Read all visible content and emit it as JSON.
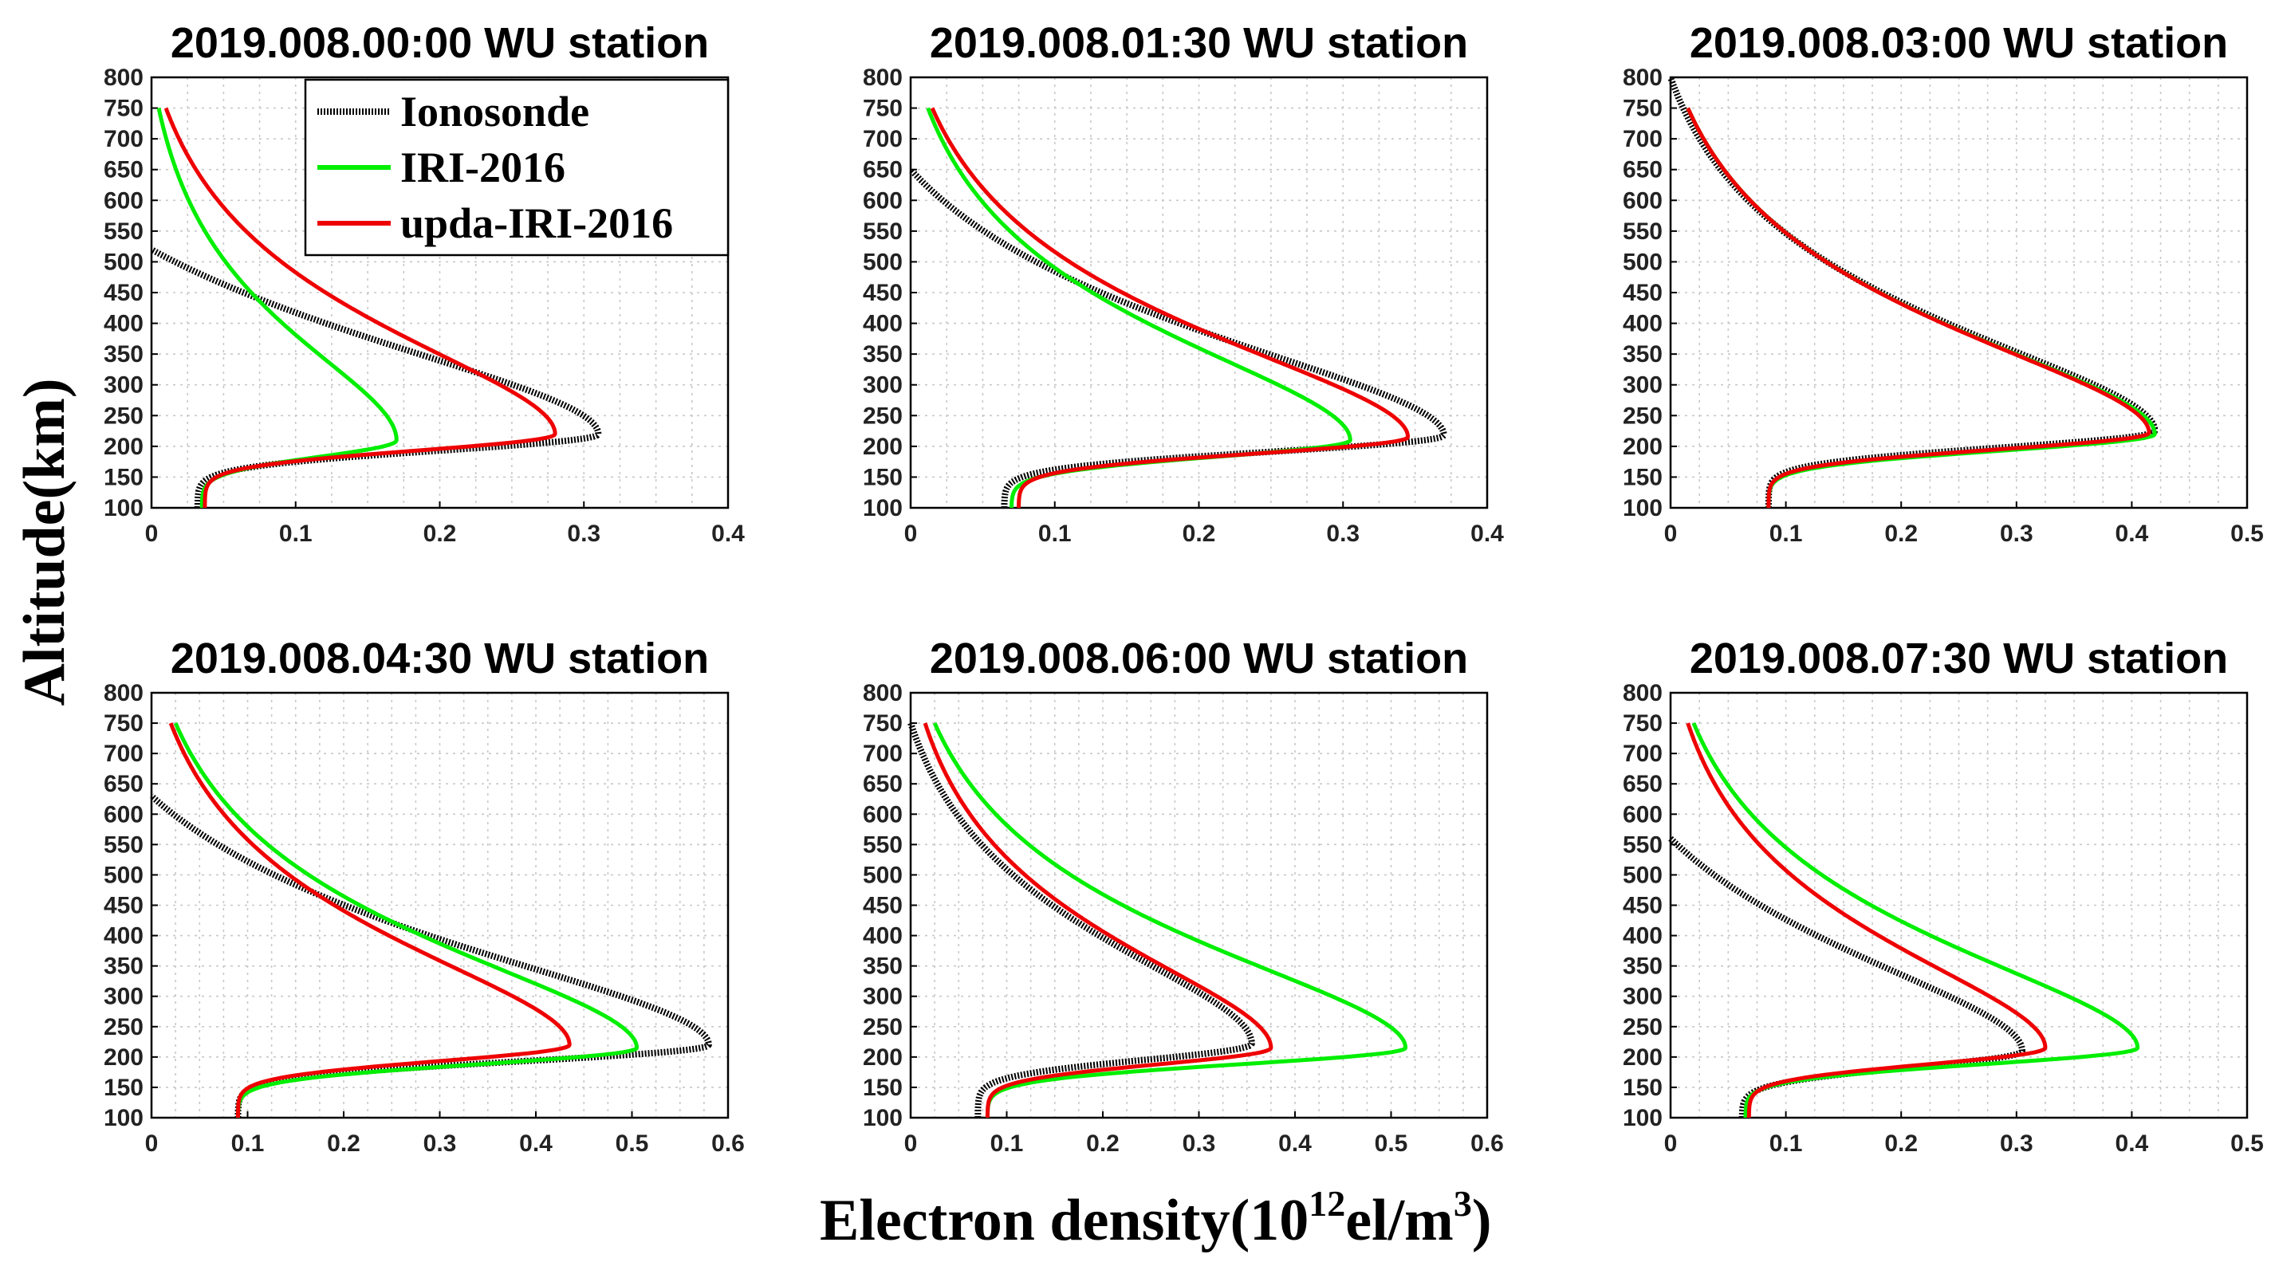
{
  "figure": {
    "ylabel": "Altitude(km)",
    "xlabel_main": "Electron density(10",
    "xlabel_exp": "12",
    "xlabel_unit": "el/m",
    "xlabel_unit_exp": "3",
    "xlabel_close": ")"
  },
  "legend": {
    "entries": [
      {
        "label": "Ionosonde",
        "color": "#000000",
        "style": "dotted"
      },
      {
        "label": "IRI-2016",
        "color": "#00ee00",
        "style": "solid"
      },
      {
        "label": "upda-IRI-2016",
        "color": "#ee0000",
        "style": "solid"
      }
    ]
  },
  "chart_data": [
    {
      "type": "line",
      "title": "2019.008.00:00 WU station",
      "xlim": [
        0,
        0.4
      ],
      "xticks": [
        0,
        0.1,
        0.2,
        0.3,
        0.4
      ],
      "ylim": [
        100,
        800
      ],
      "yticks": [
        100,
        150,
        200,
        250,
        300,
        350,
        400,
        450,
        500,
        550,
        600,
        650,
        700,
        750,
        800
      ],
      "profiles": [
        {
          "name": "Ionosonde",
          "peak_density": 0.31,
          "peak_altitude": 220,
          "bottom_density": 0.032,
          "top_altitude": 520,
          "top_density": 0.0
        },
        {
          "name": "IRI-2016",
          "peak_density": 0.17,
          "peak_altitude": 210,
          "bottom_density": 0.035,
          "top_altitude": 750,
          "top_density": 0.005
        },
        {
          "name": "upda-IRI-2016",
          "peak_density": 0.28,
          "peak_altitude": 220,
          "bottom_density": 0.037,
          "top_altitude": 750,
          "top_density": 0.01
        }
      ]
    },
    {
      "type": "line",
      "title": "2019.008.01:30 WU station",
      "xlim": [
        0,
        0.4
      ],
      "xticks": [
        0,
        0.1,
        0.2,
        0.3,
        0.4
      ],
      "ylim": [
        100,
        800
      ],
      "yticks": [
        100,
        150,
        200,
        250,
        300,
        350,
        400,
        450,
        500,
        550,
        600,
        650,
        700,
        750,
        800
      ],
      "profiles": [
        {
          "name": "Ionosonde",
          "peak_density": 0.37,
          "peak_altitude": 218,
          "bottom_density": 0.065,
          "top_altitude": 650,
          "top_density": 0.0
        },
        {
          "name": "IRI-2016",
          "peak_density": 0.305,
          "peak_altitude": 210,
          "bottom_density": 0.07,
          "top_altitude": 750,
          "top_density": 0.012
        },
        {
          "name": "upda-IRI-2016",
          "peak_density": 0.345,
          "peak_altitude": 215,
          "bottom_density": 0.075,
          "top_altitude": 750,
          "top_density": 0.015
        }
      ]
    },
    {
      "type": "line",
      "title": "2019.008.03:00 WU station",
      "xlim": [
        0,
        0.5
      ],
      "xticks": [
        0,
        0.1,
        0.2,
        0.3,
        0.4,
        0.5
      ],
      "ylim": [
        100,
        800
      ],
      "yticks": [
        100,
        150,
        200,
        250,
        300,
        350,
        400,
        450,
        500,
        550,
        600,
        650,
        700,
        750,
        800
      ],
      "profiles": [
        {
          "name": "Ionosonde",
          "peak_density": 0.42,
          "peak_altitude": 225,
          "bottom_density": 0.085,
          "top_altitude": 800,
          "top_density": 0.0
        },
        {
          "name": "IRI-2016",
          "peak_density": 0.42,
          "peak_altitude": 220,
          "bottom_density": 0.085,
          "top_altitude": 750,
          "top_density": 0.015
        },
        {
          "name": "upda-IRI-2016",
          "peak_density": 0.415,
          "peak_altitude": 222,
          "bottom_density": 0.085,
          "top_altitude": 750,
          "top_density": 0.015
        }
      ]
    },
    {
      "type": "line",
      "title": "2019.008.04:30 WU station",
      "xlim": [
        0,
        0.6
      ],
      "xticks": [
        0,
        0.1,
        0.2,
        0.3,
        0.4,
        0.5,
        0.6
      ],
      "ylim": [
        100,
        800
      ],
      "yticks": [
        100,
        150,
        200,
        250,
        300,
        350,
        400,
        450,
        500,
        550,
        600,
        650,
        700,
        750,
        800
      ],
      "profiles": [
        {
          "name": "Ionosonde",
          "peak_density": 0.58,
          "peak_altitude": 220,
          "bottom_density": 0.09,
          "top_altitude": 630,
          "top_density": 0.0
        },
        {
          "name": "IRI-2016",
          "peak_density": 0.505,
          "peak_altitude": 215,
          "bottom_density": 0.09,
          "top_altitude": 750,
          "top_density": 0.025
        },
        {
          "name": "upda-IRI-2016",
          "peak_density": 0.435,
          "peak_altitude": 220,
          "bottom_density": 0.09,
          "top_altitude": 750,
          "top_density": 0.02
        }
      ]
    },
    {
      "type": "line",
      "title": "2019.008.06:00 WU station",
      "xlim": [
        0,
        0.6
      ],
      "xticks": [
        0,
        0.1,
        0.2,
        0.3,
        0.4,
        0.5,
        0.6
      ],
      "ylim": [
        100,
        800
      ],
      "yticks": [
        100,
        150,
        200,
        250,
        300,
        350,
        400,
        450,
        500,
        550,
        600,
        650,
        700,
        750,
        800
      ],
      "profiles": [
        {
          "name": "Ionosonde",
          "peak_density": 0.355,
          "peak_altitude": 222,
          "bottom_density": 0.07,
          "top_altitude": 750,
          "top_density": 0.0
        },
        {
          "name": "IRI-2016",
          "peak_density": 0.515,
          "peak_altitude": 215,
          "bottom_density": 0.08,
          "top_altitude": 750,
          "top_density": 0.025
        },
        {
          "name": "upda-IRI-2016",
          "peak_density": 0.375,
          "peak_altitude": 215,
          "bottom_density": 0.08,
          "top_altitude": 750,
          "top_density": 0.015
        }
      ]
    },
    {
      "type": "line",
      "title": "2019.008.07:30 WU station",
      "xlim": [
        0,
        0.5
      ],
      "xticks": [
        0,
        0.1,
        0.2,
        0.3,
        0.4,
        0.5
      ],
      "ylim": [
        100,
        800
      ],
      "yticks": [
        100,
        150,
        200,
        250,
        300,
        350,
        400,
        450,
        500,
        550,
        600,
        650,
        700,
        750,
        800
      ],
      "profiles": [
        {
          "name": "Ionosonde",
          "peak_density": 0.305,
          "peak_altitude": 210,
          "bottom_density": 0.062,
          "top_altitude": 560,
          "top_density": 0.0
        },
        {
          "name": "IRI-2016",
          "peak_density": 0.405,
          "peak_altitude": 215,
          "bottom_density": 0.065,
          "top_altitude": 750,
          "top_density": 0.02
        },
        {
          "name": "upda-IRI-2016",
          "peak_density": 0.325,
          "peak_altitude": 215,
          "bottom_density": 0.068,
          "top_altitude": 750,
          "top_density": 0.015
        }
      ]
    }
  ]
}
